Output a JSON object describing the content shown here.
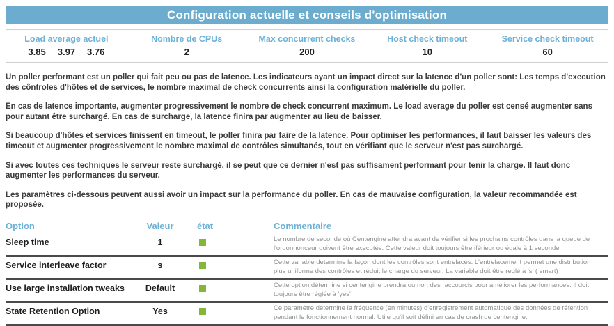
{
  "title_bar": {
    "label": "Configuration actuelle et conseils d'optimisation"
  },
  "stats": {
    "load": {
      "label": "Load average actuel",
      "values": [
        "3.85",
        "3.97",
        "3.76"
      ]
    },
    "cpus": {
      "label": "Nombre de CPUs",
      "value": "2"
    },
    "max_checks": {
      "label": "Max concurrent checks",
      "value": "200"
    },
    "host_timeout": {
      "label": "Host check timeout",
      "value": "10"
    },
    "service_timeout": {
      "label": "Service check timeout",
      "value": "60"
    }
  },
  "paragraphs": [
    "Un poller performant est un poller qui fait peu ou pas de latence. Les indicateurs ayant un impact direct sur la latence d'un poller sont: Les temps d'execution des côntroles d'hôtes et de services, le nombre maximal de check concurrents ainsi la configuration matérielle du poller.",
    "En cas de latence importante, augmenter progressivement le nombre de check concurrent maximum. Le load average du poller est censé augmenter sans pour autant être surchargé. En cas de surcharge, la latence finira par augmenter au lieu de baisser.",
    "Si beaucoup d'hôtes et services finissent en timeout, le poller finira par faire de la latence. Pour optimiser les performances, il faut baisser les valeurs des timeout et augmenter progressivement le nombre maximal de contrôles simultanés, tout en vérifiant que le serveur n'est pas surchargé.",
    "Si avec toutes ces techniques le serveur reste surchargé, il se peut que ce dernier n'est pas suffisament performant pour tenir la charge. Il faut donc augmenter les performances du serveur.",
    "Les paramètres ci-dessous peuvent aussi avoir un impact sur la performance du poller. En cas de mauvaise configuration, la valeur recommandée est proposée."
  ],
  "options_table": {
    "headers": {
      "option": "Option",
      "value": "Valeur",
      "state": "état",
      "comment": "Commentaire"
    },
    "rows": [
      {
        "option": "Sleep time",
        "value": "1",
        "state": "ok",
        "comment": "Le nombre de seconde où Centengine attendra avant de vérifier si les prochains contrôles dans la queue de l'ordonnonceur doivent être executés. Cette valeur doit toujours être iférieur ou égale à 1 seconde"
      },
      {
        "option": "Service interleave factor",
        "value": "s",
        "state": "ok",
        "comment": "Cette variable determine la façon dont les contrôles sont entrelacés. L'entrelacement permet une distribution plus uniforme des contrôles et réduit le charge du serveur. La variable doit être reglé à 's' ( smart)"
      },
      {
        "option": "Use large installation tweaks",
        "value": "Default",
        "state": "ok",
        "comment": "Cette option détermine si centengine prendra ou non des raccourcis pour améliorer les performances. Il doit toujours être réglée à 'yes'"
      },
      {
        "option": "State Retention Option",
        "value": "Yes",
        "state": "ok",
        "comment": "Ce paramètre détermine la fréquence (en minutes) d'enregistrement automatique des données de rétention pendant le fonctionnement normal. Utile qu'il soit défini en cas de crash de centengine."
      }
    ]
  },
  "colors": {
    "accent_blue": "#6baccf",
    "header_text_blue": "#6cb2d6",
    "status_ok_green": "#84b637"
  }
}
